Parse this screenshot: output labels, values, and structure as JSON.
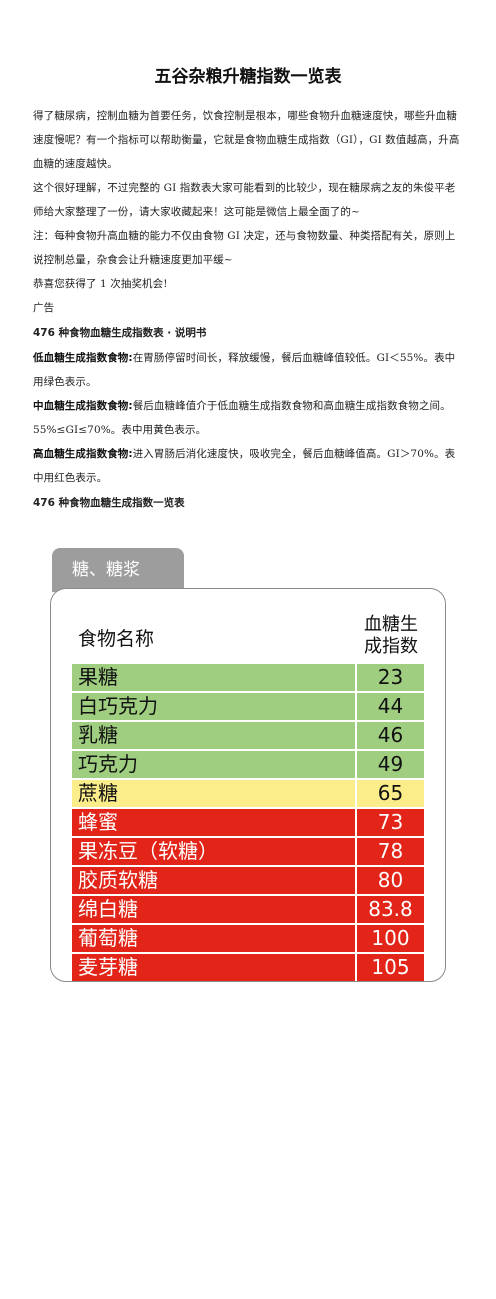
{
  "doc": {
    "title": "五谷杂粮升糖指数一览表",
    "intro1": "得了糖尿病，控制血糖为首要任务，饮食控制是根本，哪些食物升血糖速度快，哪些升血糖速度慢呢？有一个指标可以帮助衡量，它就是食物血糖生成指数（GI），GI 数值越高，升高血糖的速度越快。",
    "intro2": "这个很好理解，不过完整的 GI 指数表大家可能看到的比较少，现在糖尿病之友的朱俊平老师给大家整理了一份，请大家收藏起来！这可能是微信上最全面了的~",
    "note": "注：每种食物升高血糖的能力不仅由食物 GI 决定，还与食物数量、种类搭配有关，原则上说控制总量，杂食会让升糖速度更加平缓~",
    "prize": "恭喜您获得了 1 次抽奖机会!",
    "ad": "广告",
    "legend_heading": "476 种食物血糖生成指数表 · 说明书",
    "low_label": "低血糖生成指数食物:",
    "low_text": "在胃肠停留时间长，释放缓慢，餐后血糖峰值较低。GI＜55%。表中用绿色表示。",
    "mid_label": "中血糖生成指数食物:",
    "mid_text": "餐后血糖峰值介于低血糖生成指数食物和高血糖生成指数食物之间。55%≤GI≤70%。表中用黄色表示。",
    "high_label": "高血糖生成指数食物:",
    "high_text": "进入胃肠后消化速度快，吸收完全，餐后血糖峰值高。GI＞70%。表中用红色表示。",
    "table_heading": "476 种食物血糖生成指数一览表"
  },
  "table": {
    "tab_label": "糖、糖浆",
    "col_name": "食物名称",
    "col_gi_line1": "血糖生",
    "col_gi_line2": "成指数",
    "colors": {
      "low": "#9fce80",
      "mid": "#fbee8a",
      "high": "#e22518"
    },
    "rows": [
      {
        "name": "果糖",
        "gi": "23",
        "level": "low"
      },
      {
        "name": "白巧克力",
        "gi": "44",
        "level": "low"
      },
      {
        "name": "乳糖",
        "gi": "46",
        "level": "low"
      },
      {
        "name": "巧克力",
        "gi": "49",
        "level": "low"
      },
      {
        "name": "蔗糖",
        "gi": "65",
        "level": "mid"
      },
      {
        "name": "蜂蜜",
        "gi": "73",
        "level": "high"
      },
      {
        "name": "果冻豆（软糖）",
        "gi": "78",
        "level": "high"
      },
      {
        "name": "胶质软糖",
        "gi": "80",
        "level": "high"
      },
      {
        "name": "绵白糖",
        "gi": "83.8",
        "level": "high"
      },
      {
        "name": "葡萄糖",
        "gi": "100",
        "level": "high"
      },
      {
        "name": "麦芽糖",
        "gi": "105",
        "level": "high"
      }
    ]
  }
}
